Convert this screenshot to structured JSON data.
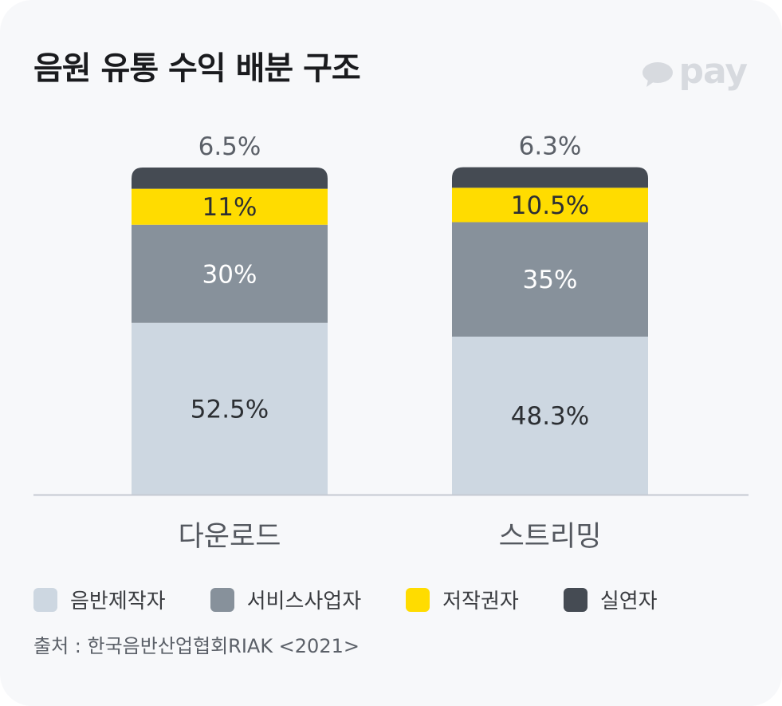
{
  "title": "음원 유통 수익 배분 구조",
  "brand": {
    "text": "pay",
    "icon": "speech-bubble-icon",
    "color": "#d7dadf"
  },
  "colors": {
    "card_bg": "#f7f8fa",
    "axis": "#c5cad2",
    "record_producer": "#cdd7e1",
    "service_provider": "#87919b",
    "copyright_holder": "#ffdc00",
    "performer": "#454b53"
  },
  "chart_data": {
    "type": "bar",
    "stacked": true,
    "categories": [
      "다운로드",
      "스트리밍"
    ],
    "series": [
      {
        "name": "음반제작자",
        "values": [
          52.5,
          48.3
        ],
        "labels": [
          "52.5%",
          "48.3%"
        ],
        "color": "#cdd7e1",
        "label_color": "#2c2f33"
      },
      {
        "name": "서비스사업자",
        "values": [
          30,
          35
        ],
        "labels": [
          "30%",
          "35%"
        ],
        "color": "#87919b",
        "label_color": "#ffffff"
      },
      {
        "name": "저작권자",
        "values": [
          11,
          10.5
        ],
        "labels": [
          "11%",
          "10.5%"
        ],
        "color": "#ffdc00",
        "label_color": "#2c2f33"
      },
      {
        "name": "실연자",
        "values": [
          6.5,
          6.3
        ],
        "labels": [
          "6.5%",
          "6.3%"
        ],
        "color": "#454b53",
        "label_color": "#5b6068",
        "label_above": true
      }
    ],
    "ylim": [
      0,
      100
    ],
    "grid": false,
    "legend_position": "bottom-left",
    "xlabel": "",
    "ylabel": ""
  },
  "legend": [
    {
      "label": "음반제작자",
      "color": "#cdd7e1"
    },
    {
      "label": "서비스사업자",
      "color": "#87919b"
    },
    {
      "label": "저작권자",
      "color": "#ffdc00"
    },
    {
      "label": "실연자",
      "color": "#454b53"
    }
  ],
  "source": "출처 : 한국음반산업협회RIAK <2021>"
}
